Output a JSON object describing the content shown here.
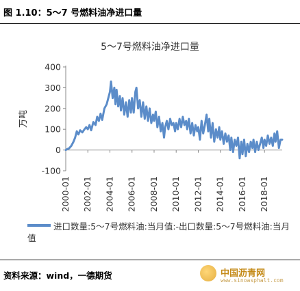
{
  "figure_title": "图 1.10：5～7 号燃料油净进口量",
  "source": "资料来源：wind，一德期货",
  "watermark": {
    "name": "中国沥青网",
    "url": "www.sinoasphalt.com"
  },
  "colors": {
    "series": "#5b8cc9",
    "axis": "#888888",
    "rule": "#1a1a1a"
  },
  "chart_data": {
    "type": "line",
    "title": "5～7号燃料油净进口量",
    "xlabel": "",
    "ylabel": "万吨",
    "ylim": [
      -100,
      400
    ],
    "yticks": [
      -100,
      0,
      100,
      200,
      300,
      400
    ],
    "xticks": [
      "2000-01",
      "2002-01",
      "2004-01",
      "2006-01",
      "2008-01",
      "2010-01",
      "2012-01",
      "2014-01",
      "2016-01",
      "2018-01"
    ],
    "xrange": [
      2000.0,
      2019.6
    ],
    "grid": false,
    "legend": "bottom",
    "series": [
      {
        "name": "进口数量:5～7号燃料油:当月值:-出口数量:5～7号燃料油:当月值",
        "points": [
          [
            2000.0,
            0
          ],
          [
            2000.15,
            5
          ],
          [
            2000.3,
            8
          ],
          [
            2000.5,
            20
          ],
          [
            2000.7,
            40
          ],
          [
            2000.85,
            60
          ],
          [
            2001.0,
            90
          ],
          [
            2001.15,
            75
          ],
          [
            2001.3,
            95
          ],
          [
            2001.5,
            85
          ],
          [
            2001.7,
            100
          ],
          [
            2001.85,
            110
          ],
          [
            2002.0,
            100
          ],
          [
            2002.15,
            120
          ],
          [
            2002.3,
            95
          ],
          [
            2002.5,
            135
          ],
          [
            2002.7,
            120
          ],
          [
            2002.85,
            160
          ],
          [
            2003.0,
            140
          ],
          [
            2003.15,
            175
          ],
          [
            2003.3,
            145
          ],
          [
            2003.5,
            200
          ],
          [
            2003.7,
            220
          ],
          [
            2003.85,
            250
          ],
          [
            2004.0,
            280
          ],
          [
            2004.1,
            330
          ],
          [
            2004.25,
            250
          ],
          [
            2004.4,
            300
          ],
          [
            2004.5,
            220
          ],
          [
            2004.6,
            290
          ],
          [
            2004.75,
            210
          ],
          [
            2004.9,
            260
          ],
          [
            2005.0,
            190
          ],
          [
            2005.15,
            250
          ],
          [
            2005.3,
            170
          ],
          [
            2005.45,
            230
          ],
          [
            2005.6,
            160
          ],
          [
            2005.75,
            240
          ],
          [
            2005.9,
            180
          ],
          [
            2006.0,
            250
          ],
          [
            2006.15,
            180
          ],
          [
            2006.3,
            280
          ],
          [
            2006.4,
            300
          ],
          [
            2006.55,
            200
          ],
          [
            2006.7,
            240
          ],
          [
            2006.85,
            160
          ],
          [
            2007.0,
            230
          ],
          [
            2007.15,
            150
          ],
          [
            2007.3,
            210
          ],
          [
            2007.45,
            140
          ],
          [
            2007.6,
            200
          ],
          [
            2007.75,
            130
          ],
          [
            2007.9,
            170
          ],
          [
            2008.0,
            140
          ],
          [
            2008.15,
            185
          ],
          [
            2008.3,
            110
          ],
          [
            2008.45,
            160
          ],
          [
            2008.6,
            90
          ],
          [
            2008.75,
            130
          ],
          [
            2008.9,
            60
          ],
          [
            2009.0,
            110
          ],
          [
            2009.15,
            140
          ],
          [
            2009.3,
            100
          ],
          [
            2009.45,
            150
          ],
          [
            2009.6,
            120
          ],
          [
            2009.75,
            130
          ],
          [
            2009.9,
            90
          ],
          [
            2010.0,
            130
          ],
          [
            2010.15,
            100
          ],
          [
            2010.3,
            150
          ],
          [
            2010.45,
            110
          ],
          [
            2010.6,
            160
          ],
          [
            2010.75,
            120
          ],
          [
            2010.9,
            140
          ],
          [
            2011.0,
            100
          ],
          [
            2011.15,
            150
          ],
          [
            2011.3,
            80
          ],
          [
            2011.45,
            130
          ],
          [
            2011.6,
            70
          ],
          [
            2011.75,
            120
          ],
          [
            2011.9,
            90
          ],
          [
            2012.0,
            110
          ],
          [
            2012.15,
            50
          ],
          [
            2012.3,
            140
          ],
          [
            2012.45,
            80
          ],
          [
            2012.6,
            120
          ],
          [
            2012.75,
            170
          ],
          [
            2012.9,
            90
          ],
          [
            2013.0,
            150
          ],
          [
            2013.15,
            60
          ],
          [
            2013.3,
            130
          ],
          [
            2013.45,
            40
          ],
          [
            2013.6,
            100
          ],
          [
            2013.75,
            60
          ],
          [
            2013.9,
            110
          ],
          [
            2014.0,
            50
          ],
          [
            2014.15,
            90
          ],
          [
            2014.3,
            30
          ],
          [
            2014.45,
            80
          ],
          [
            2014.6,
            40
          ],
          [
            2014.75,
            70
          ],
          [
            2014.9,
            0
          ],
          [
            2015.0,
            60
          ],
          [
            2015.15,
            -10
          ],
          [
            2015.3,
            50
          ],
          [
            2015.45,
            20
          ],
          [
            2015.6,
            60
          ],
          [
            2015.75,
            -40
          ],
          [
            2015.9,
            40
          ],
          [
            2016.0,
            -20
          ],
          [
            2016.15,
            50
          ],
          [
            2016.3,
            -30
          ],
          [
            2016.45,
            30
          ],
          [
            2016.6,
            -10
          ],
          [
            2016.75,
            40
          ],
          [
            2016.9,
            10
          ],
          [
            2017.0,
            50
          ],
          [
            2017.15,
            -10
          ],
          [
            2017.3,
            40
          ],
          [
            2017.45,
            0
          ],
          [
            2017.6,
            30
          ],
          [
            2017.75,
            60
          ],
          [
            2017.9,
            10
          ],
          [
            2018.0,
            50
          ],
          [
            2018.15,
            20
          ],
          [
            2018.3,
            70
          ],
          [
            2018.45,
            30
          ],
          [
            2018.6,
            60
          ],
          [
            2018.75,
            20
          ],
          [
            2018.9,
            80
          ],
          [
            2019.0,
            40
          ],
          [
            2019.15,
            90
          ],
          [
            2019.3,
            10
          ],
          [
            2019.45,
            50
          ],
          [
            2019.6,
            50
          ]
        ]
      }
    ]
  }
}
